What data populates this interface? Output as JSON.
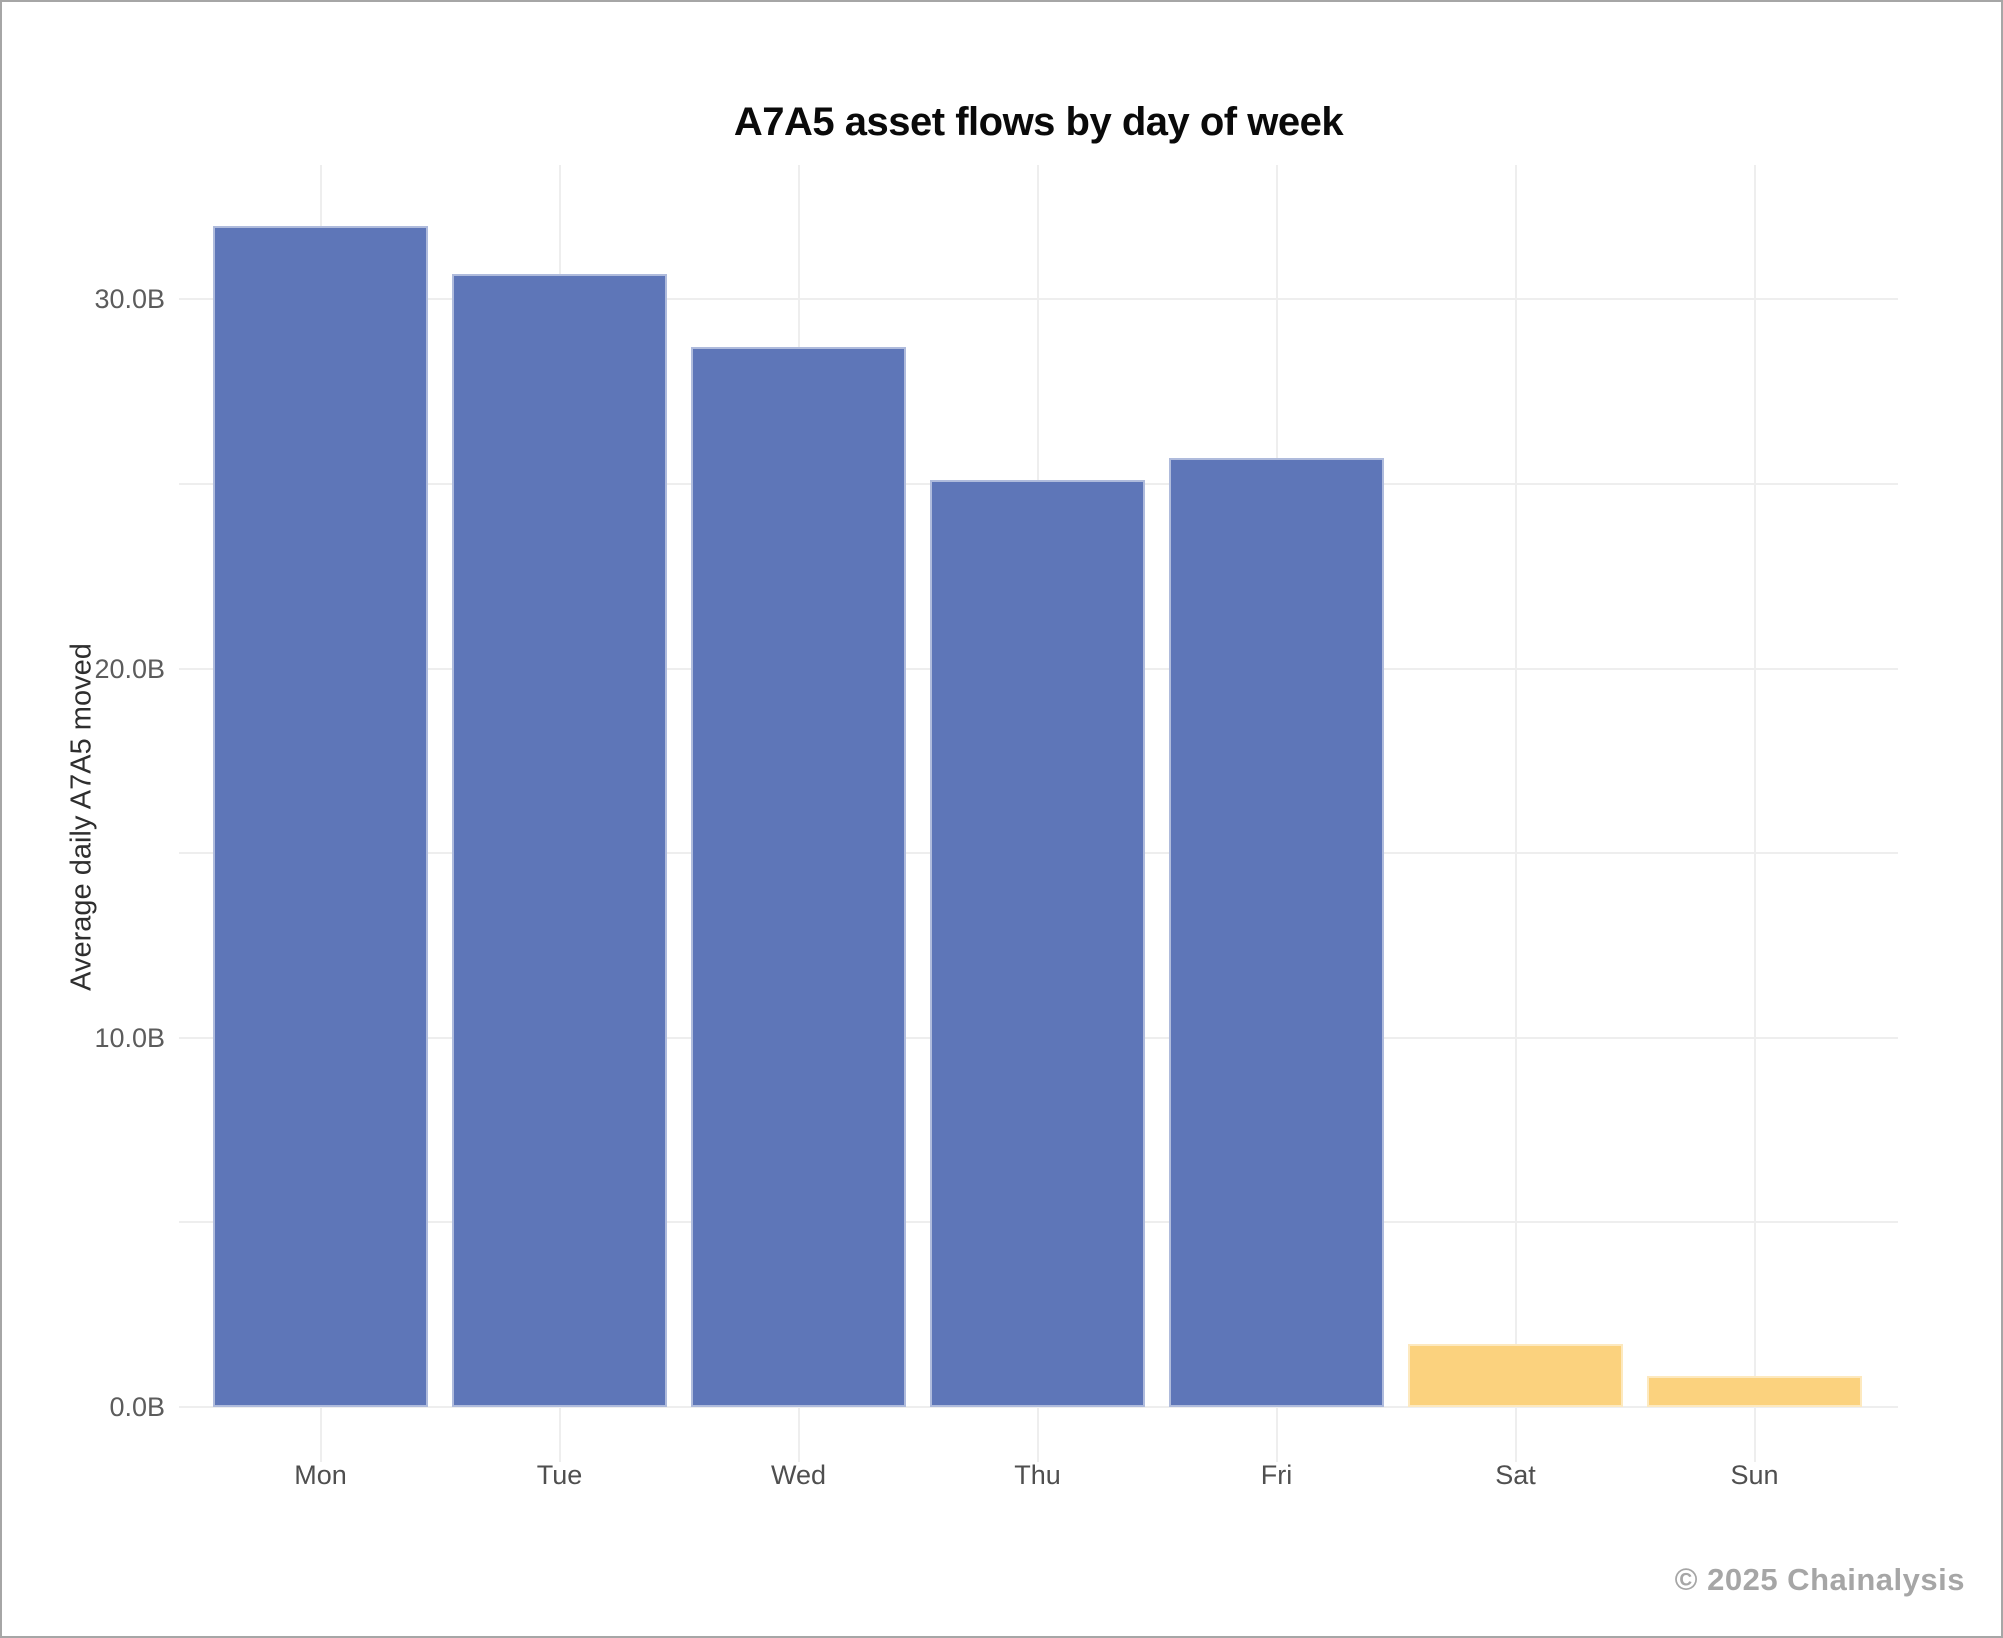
{
  "footer": "© 2025 Chainalysis",
  "colors": {
    "weekday_bar": "#5e76b8",
    "weekend_bar": "#fbd27e",
    "gridline": "#eeeeee",
    "title_text": "#0a0a0a",
    "tick_text": "#5c5c5c",
    "axis_title_text": "#2e2e2e",
    "watermark_text": "#a6a6a6",
    "frame_border": "#a6a6a6",
    "background": "#ffffff"
  },
  "chart_data": {
    "type": "bar",
    "title": "A7A5 asset flows by day of week",
    "xlabel": "",
    "ylabel": "Average daily A7A5 moved",
    "categories": [
      "Mon",
      "Tue",
      "Wed",
      "Thu",
      "Fri",
      "Sat",
      "Sun"
    ],
    "values": [
      32.0,
      30.7,
      28.7,
      25.1,
      25.7,
      1.7,
      0.85
    ],
    "unit": "B",
    "bar_colors": [
      "#5e76b8",
      "#5e76b8",
      "#5e76b8",
      "#5e76b8",
      "#5e76b8",
      "#fbd27e",
      "#fbd27e"
    ],
    "ylim": [
      0,
      33.6
    ],
    "yticks": [
      0,
      10,
      20,
      30
    ],
    "ytick_labels": [
      "0.0B",
      "10.0B",
      "20.0B",
      "30.0B"
    ],
    "minor_grid_step": 5,
    "max_gridline_value": 30,
    "grid": true,
    "legend": false
  }
}
